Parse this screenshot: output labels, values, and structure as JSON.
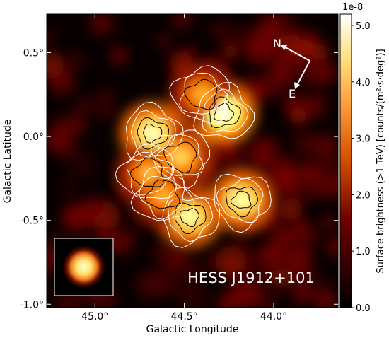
{
  "chart_data": {
    "type": "heatmap",
    "source_name": "HESS J1912+101",
    "xlabel": "Galactic Longitude",
    "ylabel": "Galactic Latitude",
    "xlim": [
      45.27,
      43.64
    ],
    "ylim": [
      -1.02,
      0.73
    ],
    "x_ticks": [
      45.0,
      44.5,
      44.0
    ],
    "x_tick_labels": [
      "45.0°",
      "44.5°",
      "44.0°"
    ],
    "y_ticks": [
      0.5,
      0.0,
      -0.5,
      -1.0
    ],
    "y_tick_labels": [
      "0.5°",
      "0.0°",
      "-0.5°",
      "-1.0°"
    ],
    "colorbar": {
      "label": "Surface brightness (>1 TeV) [counts/(m²·s·deg²)]",
      "multiplier": "1e-8",
      "range": [
        0.0,
        5.2
      ],
      "ticks": [
        0.0,
        1.0,
        2.0,
        3.0,
        4.0,
        5.0
      ],
      "tick_labels": [
        "0.0",
        "1.0",
        "2.0",
        "3.0",
        "4.0",
        "5.0"
      ],
      "colormap": "afmhot"
    },
    "contours": {
      "colors": [
        "#ffffff",
        "#000000"
      ]
    },
    "compass": {
      "north_label": "N",
      "east_label": "E"
    },
    "psf_inset": true,
    "emission_regions": [
      {
        "l": 44.28,
        "b": 0.14,
        "peak": 4.8
      },
      {
        "l": 44.68,
        "b": 0.02,
        "peak": 4.3
      },
      {
        "l": 44.47,
        "b": -0.48,
        "peak": 4.1
      },
      {
        "l": 44.18,
        "b": -0.38,
        "peak": 4.2
      },
      {
        "l": 44.52,
        "b": -0.12,
        "peak": 3.4
      },
      {
        "l": 44.4,
        "b": 0.25,
        "peak": 3.0
      },
      {
        "l": 44.7,
        "b": -0.22,
        "peak": 3.1
      },
      {
        "l": 44.62,
        "b": -0.35,
        "peak": 3.0
      }
    ]
  }
}
